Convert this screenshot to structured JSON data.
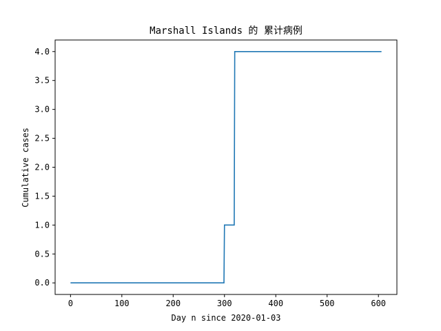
{
  "chart_data": {
    "type": "line",
    "title": "Marshall Islands 的 累计病例",
    "xlabel": "Day n since 2020-01-03",
    "ylabel": "Cumulative cases",
    "xlim": [
      -30,
      636
    ],
    "ylim": [
      -0.2,
      4.2
    ],
    "xticks": [
      0,
      100,
      200,
      300,
      400,
      500,
      600
    ],
    "yticks": [
      0.0,
      0.5,
      1.0,
      1.5,
      2.0,
      2.5,
      3.0,
      3.5,
      4.0
    ],
    "xtick_labels": [
      "0",
      "100",
      "200",
      "300",
      "400",
      "500",
      "600"
    ],
    "ytick_labels": [
      "0.0",
      "0.5",
      "1.0",
      "1.5",
      "2.0",
      "2.5",
      "3.0",
      "3.5",
      "4.0"
    ],
    "grid": false,
    "series": [
      {
        "color": "#1f77b4",
        "x": [
          0,
          299,
          300,
          319,
          320,
          606
        ],
        "y": [
          0,
          0,
          1,
          1,
          4,
          4
        ]
      }
    ]
  }
}
